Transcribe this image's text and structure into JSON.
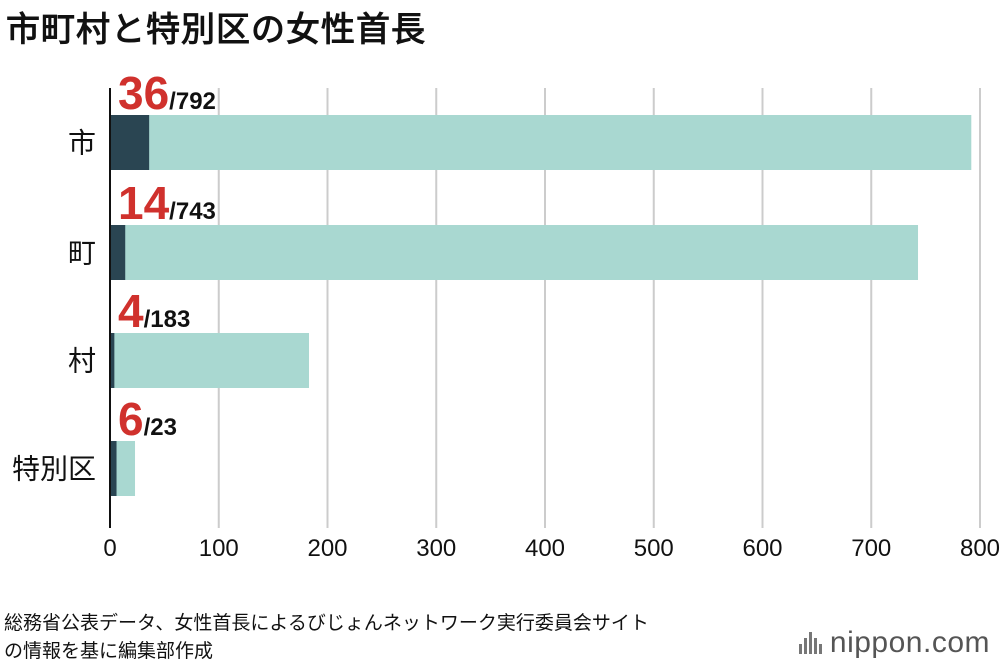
{
  "title": "市町村と特別区の女性首長",
  "source": {
    "line1": "総務省公表データ、女性首長によるびじょんネットワーク実行委員会サイト",
    "line2": "の情報を基に編集部作成"
  },
  "brand": "nippon.com",
  "colors": {
    "female_bar": "#2a4552",
    "total_bar": "#a9d8d1",
    "highlight_text": "#d0312d",
    "grid": "#cccccc"
  },
  "chart_data": {
    "type": "bar",
    "orientation": "horizontal",
    "categories": [
      "市",
      "町",
      "村",
      "特別区"
    ],
    "series": [
      {
        "name": "",
        "values": [
          36,
          14,
          4,
          6
        ]
      },
      {
        "name": "",
        "values": [
          792,
          743,
          183,
          23
        ]
      }
    ],
    "data_labels": [
      {
        "value": "36",
        "total": "/792"
      },
      {
        "value": "14",
        "total": "/743"
      },
      {
        "value": "4",
        "total": "/183"
      },
      {
        "value": "6",
        "total": "/23"
      }
    ],
    "xlim": [
      0,
      800
    ],
    "xticks": [
      "0",
      "100",
      "200",
      "300",
      "400",
      "500",
      "600",
      "700",
      "800"
    ],
    "grid": true,
    "xlabel": "",
    "ylabel": ""
  }
}
